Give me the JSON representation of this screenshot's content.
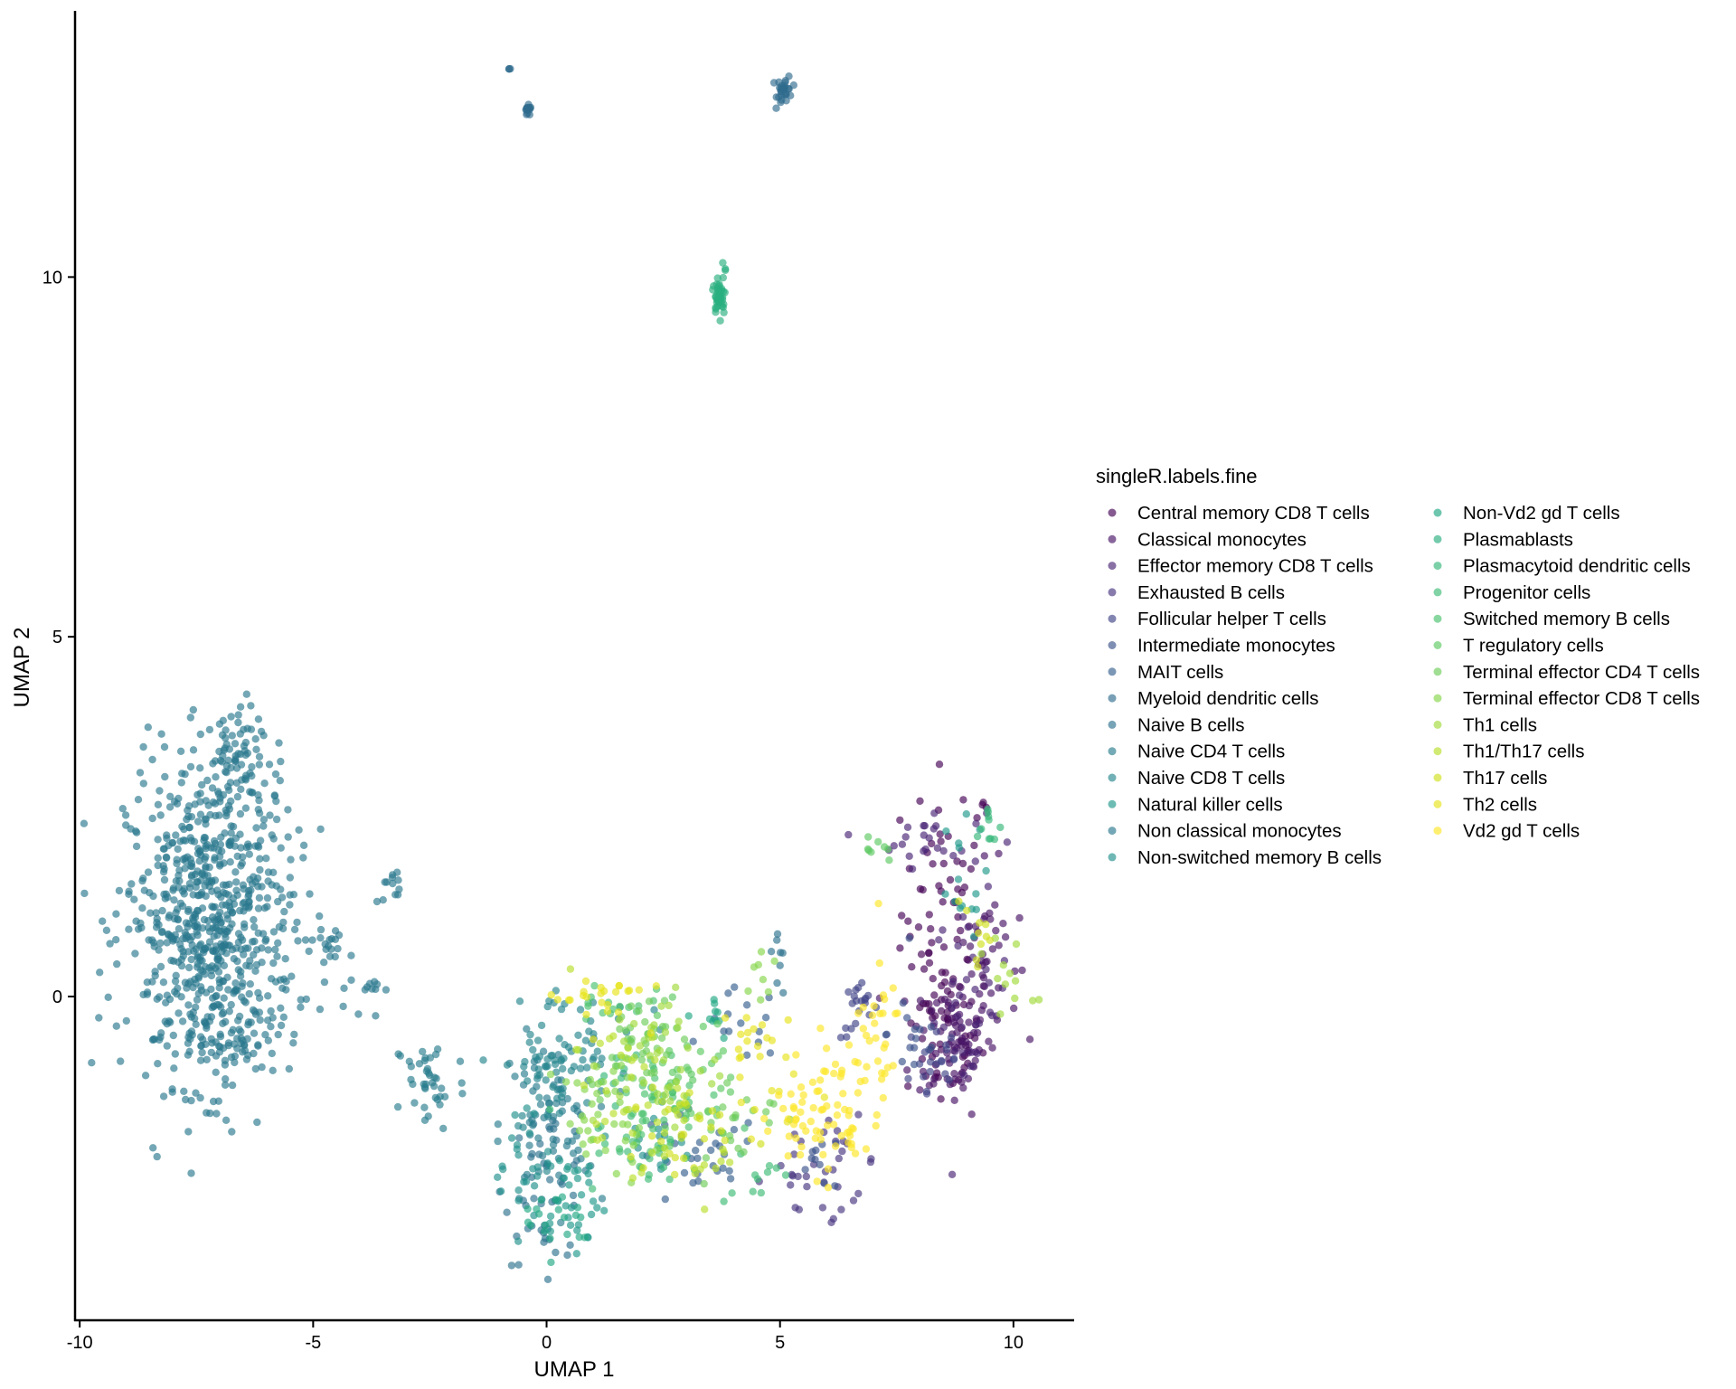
{
  "chart_data": {
    "type": "scatter",
    "title": "",
    "xlabel": "UMAP 1",
    "ylabel": "UMAP 2",
    "xlim": [
      -10.1,
      11.3
    ],
    "ylim": [
      -4.5,
      13.7
    ],
    "x_ticks": [
      -10,
      -5,
      0,
      5,
      10
    ],
    "x_tick_labels": [
      "-10",
      "-5",
      "0",
      "5",
      "10"
    ],
    "y_ticks": [
      0,
      5,
      10
    ],
    "y_tick_labels": [
      "0",
      "5",
      "10"
    ],
    "grid": false,
    "legend": {
      "title": "singleR.labels.fine",
      "placement": "right",
      "columns": 2
    },
    "point_alpha": 0.65,
    "series": [
      {
        "name": "Central memory CD8 T cells",
        "color": "#440154",
        "clusters": [
          {
            "cx": 8.6,
            "cy": 1.2,
            "sx": 0.5,
            "sy": 1.0,
            "n": 60
          },
          {
            "cx": 8.5,
            "cy": -0.5,
            "sx": 0.4,
            "sy": 0.5,
            "n": 50
          }
        ]
      },
      {
        "name": "Classical monocytes",
        "color": "#471365",
        "clusters": [
          {
            "cx": 8.7,
            "cy": -0.6,
            "sx": 0.45,
            "sy": 0.5,
            "n": 70
          },
          {
            "cx": 9.4,
            "cy": 0.6,
            "sx": 0.35,
            "sy": 0.6,
            "n": 40
          }
        ]
      },
      {
        "name": "Effector memory CD8 T cells",
        "color": "#482475",
        "clusters": [
          {
            "cx": 8.2,
            "cy": 2.2,
            "sx": 0.6,
            "sy": 0.2,
            "n": 25
          },
          {
            "cx": 9.1,
            "cy": -0.1,
            "sx": 0.4,
            "sy": 0.7,
            "n": 35
          }
        ]
      },
      {
        "name": "Exhausted B cells",
        "color": "#463480",
        "clusters": [
          {
            "cx": 6.3,
            "cy": -2.3,
            "sx": 0.4,
            "sy": 0.3,
            "n": 20
          },
          {
            "cx": 5.2,
            "cy": -2.5,
            "sx": 0.4,
            "sy": 0.25,
            "n": 15
          }
        ]
      },
      {
        "name": "Follicular helper T cells",
        "color": "#414487",
        "clusters": [
          {
            "cx": 6.7,
            "cy": -0.2,
            "sx": 0.2,
            "sy": 0.2,
            "n": 20
          },
          {
            "cx": 8.3,
            "cy": -0.9,
            "sx": 0.35,
            "sy": 0.4,
            "n": 20
          }
        ]
      },
      {
        "name": "Intermediate monocytes",
        "color": "#3B528B",
        "clusters": [
          {
            "cx": 7.9,
            "cy": -0.5,
            "sx": 0.3,
            "sy": 0.4,
            "n": 15
          },
          {
            "cx": 5.9,
            "cy": -2.3,
            "sx": 0.3,
            "sy": 0.2,
            "n": 10
          }
        ]
      },
      {
        "name": "MAIT cells",
        "color": "#355F8D",
        "clusters": [
          {
            "cx": 3.2,
            "cy": -2.3,
            "sx": 0.7,
            "sy": 0.35,
            "n": 30
          },
          {
            "cx": 4.2,
            "cy": -0.4,
            "sx": 0.4,
            "sy": 0.25,
            "n": 15
          }
        ]
      },
      {
        "name": "Myeloid dendritic cells",
        "color": "#2F6C8E",
        "clusters": [
          {
            "cx": -0.8,
            "cy": 12.9,
            "sx": 0.02,
            "sy": 0.02,
            "n": 3
          },
          {
            "cx": -0.4,
            "cy": 12.3,
            "sx": 0.04,
            "sy": 0.04,
            "n": 15
          },
          {
            "cx": 5.1,
            "cy": 12.6,
            "sx": 0.08,
            "sy": 0.1,
            "n": 30
          }
        ]
      },
      {
        "name": "Naive B cells",
        "color": "#2C728E",
        "clusters": [
          {
            "cx": 0.0,
            "cy": -2.6,
            "sx": 0.45,
            "sy": 0.55,
            "n": 50
          },
          {
            "cx": 5.0,
            "cy": 0.6,
            "sx": 0.08,
            "sy": 0.3,
            "n": 8
          }
        ]
      },
      {
        "name": "Naive CD4 T cells",
        "color": "#287D8E",
        "clusters": [
          {
            "cx": 0.0,
            "cy": -1.8,
            "sx": 0.5,
            "sy": 0.6,
            "n": 70
          },
          {
            "cx": -2.5,
            "cy": -1.2,
            "sx": 0.4,
            "sy": 0.35,
            "n": 40
          }
        ]
      },
      {
        "name": "Naive CD8 T cells",
        "color": "#25858E",
        "clusters": [
          {
            "cx": 0.1,
            "cy": -1.0,
            "sx": 0.5,
            "sy": 0.5,
            "n": 50
          },
          {
            "cx": 1.0,
            "cy": -0.5,
            "sx": 0.6,
            "sy": 0.4,
            "n": 30
          }
        ]
      },
      {
        "name": "Natural killer cells",
        "color": "#1F988B",
        "clusters": [
          {
            "cx": 0.5,
            "cy": -2.8,
            "sx": 0.4,
            "sy": 0.4,
            "n": 30
          },
          {
            "cx": 8.8,
            "cy": 1.6,
            "sx": 0.3,
            "sy": 0.4,
            "n": 15
          }
        ]
      },
      {
        "name": "Non classical monocytes",
        "color": "#2A788E",
        "clusters": [
          {
            "cx": -7.2,
            "cy": 1.0,
            "sx": 0.9,
            "sy": 1.1,
            "n": 700
          },
          {
            "cx": -6.8,
            "cy": 3.2,
            "sx": 0.35,
            "sy": 0.4,
            "n": 80
          },
          {
            "cx": -7.0,
            "cy": -0.5,
            "sx": 0.6,
            "sy": 0.35,
            "n": 60
          },
          {
            "cx": -4.6,
            "cy": 0.8,
            "sx": 0.3,
            "sy": 0.15,
            "n": 15
          },
          {
            "cx": -4.0,
            "cy": 0.2,
            "sx": 0.25,
            "sy": 0.25,
            "n": 15
          },
          {
            "cx": -3.3,
            "cy": 1.5,
            "sx": 0.1,
            "sy": 0.12,
            "n": 12
          }
        ]
      },
      {
        "name": "Non-switched memory B cells",
        "color": "#21908C",
        "clusters": [
          {
            "cx": -0.5,
            "cy": -2.2,
            "sx": 0.3,
            "sy": 0.5,
            "n": 25
          },
          {
            "cx": 2.3,
            "cy": -2.1,
            "sx": 0.4,
            "sy": 0.3,
            "n": 15
          }
        ]
      },
      {
        "name": "Non-Vd2 gd T cells",
        "color": "#22A884",
        "clusters": [
          {
            "cx": 0.3,
            "cy": -3.1,
            "sx": 0.4,
            "sy": 0.25,
            "n": 20
          },
          {
            "cx": 3.4,
            "cy": -0.2,
            "sx": 0.35,
            "sy": 0.2,
            "n": 10
          }
        ]
      },
      {
        "name": "Plasmablasts",
        "color": "#29AF7F",
        "clusters": [
          {
            "cx": 3.7,
            "cy": 9.75,
            "sx": 0.07,
            "sy": 0.14,
            "n": 40
          },
          {
            "cx": 3.85,
            "cy": 10.1,
            "sx": 0.04,
            "sy": 0.05,
            "n": 4
          }
        ]
      },
      {
        "name": "Plasmacytoid dendritic cells",
        "color": "#35B779",
        "clusters": [
          {
            "cx": 9.5,
            "cy": 2.3,
            "sx": 0.15,
            "sy": 0.2,
            "n": 10
          },
          {
            "cx": 1.6,
            "cy": -1.2,
            "sx": 0.3,
            "sy": 0.3,
            "n": 10
          }
        ]
      },
      {
        "name": "Progenitor cells",
        "color": "#3DBC74",
        "clusters": [
          {
            "cx": 2.1,
            "cy": -2.2,
            "sx": 0.6,
            "sy": 0.3,
            "n": 25
          },
          {
            "cx": 4.5,
            "cy": -2.4,
            "sx": 0.4,
            "sy": 0.2,
            "n": 10
          }
        ]
      },
      {
        "name": "Switched memory B cells",
        "color": "#4AC16D",
        "clusters": [
          {
            "cx": 2.6,
            "cy": -1.5,
            "sx": 0.6,
            "sy": 0.4,
            "n": 40
          },
          {
            "cx": 1.4,
            "cy": -0.1,
            "sx": 0.4,
            "sy": 0.2,
            "n": 15
          }
        ]
      },
      {
        "name": "T regulatory cells",
        "color": "#5EC962",
        "clusters": [
          {
            "cx": 3.0,
            "cy": -1.0,
            "sx": 0.6,
            "sy": 0.4,
            "n": 35
          },
          {
            "cx": 7.1,
            "cy": 2.0,
            "sx": 0.15,
            "sy": 0.1,
            "n": 8
          }
        ]
      },
      {
        "name": "Terminal effector CD4 T cells",
        "color": "#6DCD59",
        "clusters": [
          {
            "cx": 1.9,
            "cy": -0.6,
            "sx": 0.5,
            "sy": 0.35,
            "n": 40
          },
          {
            "cx": 3.9,
            "cy": -1.7,
            "sx": 0.5,
            "sy": 0.3,
            "n": 25
          }
        ]
      },
      {
        "name": "Terminal effector CD8 T cells",
        "color": "#86D549",
        "clusters": [
          {
            "cx": 1.3,
            "cy": -1.7,
            "sx": 0.5,
            "sy": 0.4,
            "n": 40
          },
          {
            "cx": 4.6,
            "cy": 0.4,
            "sx": 0.15,
            "sy": 0.3,
            "n": 8
          }
        ]
      },
      {
        "name": "Th1 cells",
        "color": "#A0DA39",
        "clusters": [
          {
            "cx": 2.4,
            "cy": -0.9,
            "sx": 0.7,
            "sy": 0.5,
            "n": 40
          },
          {
            "cx": 9.8,
            "cy": 0.2,
            "sx": 0.3,
            "sy": 0.4,
            "n": 12
          }
        ]
      },
      {
        "name": "Th1/Th17 cells",
        "color": "#B8DE29",
        "clusters": [
          {
            "cx": 1.7,
            "cy": -1.4,
            "sx": 0.6,
            "sy": 0.5,
            "n": 35
          },
          {
            "cx": 3.3,
            "cy": -2.2,
            "sx": 0.5,
            "sy": 0.3,
            "n": 15
          }
        ]
      },
      {
        "name": "Th17 cells",
        "color": "#D0E11C",
        "clusters": [
          {
            "cx": 2.9,
            "cy": -1.9,
            "sx": 0.6,
            "sy": 0.35,
            "n": 25
          },
          {
            "cx": 9.2,
            "cy": 0.8,
            "sx": 0.25,
            "sy": 0.4,
            "n": 10
          }
        ]
      },
      {
        "name": "Th2 cells",
        "color": "#E7E419",
        "clusters": [
          {
            "cx": 1.1,
            "cy": 0.0,
            "sx": 0.5,
            "sy": 0.2,
            "n": 25
          },
          {
            "cx": 4.3,
            "cy": -0.9,
            "sx": 0.5,
            "sy": 0.5,
            "n": 25
          }
        ]
      },
      {
        "name": "Vd2 gd T cells",
        "color": "#FDE725",
        "clusters": [
          {
            "cx": 6.2,
            "cy": -1.5,
            "sx": 0.5,
            "sy": 0.5,
            "n": 50
          },
          {
            "cx": 7.0,
            "cy": -0.5,
            "sx": 0.3,
            "sy": 0.5,
            "n": 30
          },
          {
            "cx": 5.4,
            "cy": -1.9,
            "sx": 0.4,
            "sy": 0.3,
            "n": 25
          }
        ]
      }
    ]
  }
}
